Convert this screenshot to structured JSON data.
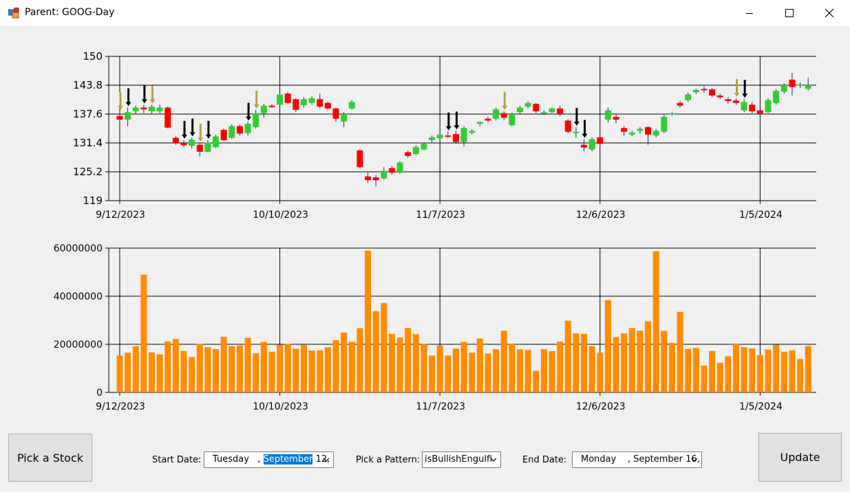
{
  "window": {
    "title": "Parent: GOOG-Day",
    "controls": {
      "minimize": "minimize-icon",
      "maximize": "maximize-icon",
      "close": "close-icon"
    }
  },
  "controls": {
    "pick_stock": "Pick a Stock",
    "update": "Update",
    "start_label": "Start Date:",
    "start_value": {
      "day": "Tuesday",
      "sep": ",",
      "month": "September",
      "rest": "12,"
    },
    "pattern_label": "Pick a Pattern:",
    "pattern_value": "isBullishEngulfi",
    "end_label": "End Date:",
    "end_value": "Monday    , September 16,"
  },
  "colors": {
    "up": "#32cd32",
    "down": "#ff0000",
    "volume": "#ff8c00",
    "marker": "#000000",
    "marker_alt": "#b8a040"
  },
  "chart_data": [
    {
      "type": "candlestick",
      "ylim": [
        119,
        150
      ],
      "y_ticks": [
        "150",
        "143.8",
        "137.6",
        "131.4",
        "125.2",
        "119"
      ],
      "x_tick_labels": [
        "9/12/2023",
        "10/10/2023",
        "11/7/2023",
        "12/6/2023",
        "1/5/2024"
      ],
      "x_tick_index": [
        0,
        20,
        40,
        60,
        80
      ],
      "candles": [
        {
          "o": 137.2,
          "c": 136.4,
          "h": 138.2,
          "l": 136.0
        },
        {
          "o": 136.4,
          "c": 138.0,
          "h": 139.0,
          "l": 135.0
        },
        {
          "o": 138.2,
          "c": 139.0,
          "h": 139.4,
          "l": 137.5
        },
        {
          "o": 139.0,
          "c": 138.6,
          "h": 139.6,
          "l": 137.8
        },
        {
          "o": 138.2,
          "c": 139.2,
          "h": 139.6,
          "l": 137.6
        },
        {
          "o": 138.2,
          "c": 139.0,
          "h": 139.6,
          "l": 137.8
        },
        {
          "o": 139.0,
          "c": 134.7,
          "h": 139.2,
          "l": 134.5
        },
        {
          "o": 132.5,
          "c": 131.4,
          "h": 132.8,
          "l": 131.0
        },
        {
          "o": 131.4,
          "c": 130.9,
          "h": 132.0,
          "l": 130.5
        },
        {
          "o": 130.8,
          "c": 132.1,
          "h": 132.5,
          "l": 130.2
        },
        {
          "o": 131.0,
          "c": 129.5,
          "h": 131.4,
          "l": 128.5
        },
        {
          "o": 129.5,
          "c": 131.5,
          "h": 132.0,
          "l": 129.4
        },
        {
          "o": 130.5,
          "c": 132.8,
          "h": 133.2,
          "l": 130.3
        },
        {
          "o": 134.2,
          "c": 132.0,
          "h": 134.5,
          "l": 131.8
        },
        {
          "o": 132.5,
          "c": 135.0,
          "h": 135.4,
          "l": 132.2
        },
        {
          "o": 135.0,
          "c": 133.4,
          "h": 135.3,
          "l": 133.0
        },
        {
          "o": 133.5,
          "c": 135.5,
          "h": 135.9,
          "l": 133.0
        },
        {
          "o": 134.8,
          "c": 137.8,
          "h": 138.5,
          "l": 134.5
        },
        {
          "o": 137.8,
          "c": 139.4,
          "h": 139.8,
          "l": 136.8
        },
        {
          "o": 139.4,
          "c": 139.1,
          "h": 139.7,
          "l": 138.9
        },
        {
          "o": 139.6,
          "c": 141.8,
          "h": 142.2,
          "l": 139.4
        },
        {
          "o": 142.0,
          "c": 140.0,
          "h": 142.3,
          "l": 139.8
        },
        {
          "o": 140.8,
          "c": 138.5,
          "h": 141.0,
          "l": 138.0
        },
        {
          "o": 139.5,
          "c": 140.8,
          "h": 141.2,
          "l": 139.0
        },
        {
          "o": 140.0,
          "c": 141.0,
          "h": 141.4,
          "l": 139.6
        },
        {
          "o": 140.8,
          "c": 139.2,
          "h": 142.0,
          "l": 138.9
        },
        {
          "o": 140.0,
          "c": 138.8,
          "h": 140.3,
          "l": 138.5
        },
        {
          "o": 138.8,
          "c": 136.6,
          "h": 139.0,
          "l": 136.0
        },
        {
          "o": 136.0,
          "c": 137.6,
          "h": 138.0,
          "l": 134.8
        },
        {
          "o": 138.8,
          "c": 140.2,
          "h": 140.6,
          "l": 138.5
        },
        {
          "o": 129.8,
          "c": 126.2,
          "h": 130.0,
          "l": 126.0
        },
        {
          "o": 124.2,
          "c": 123.4,
          "h": 125.0,
          "l": 122.8
        },
        {
          "o": 124.0,
          "c": 123.4,
          "h": 124.5,
          "l": 122.0
        },
        {
          "o": 123.8,
          "c": 125.4,
          "h": 126.2,
          "l": 123.5
        },
        {
          "o": 126.0,
          "c": 125.0,
          "h": 126.5,
          "l": 124.6
        },
        {
          "o": 125.0,
          "c": 127.2,
          "h": 127.5,
          "l": 124.8
        },
        {
          "o": 129.4,
          "c": 128.6,
          "h": 129.8,
          "l": 128.2
        },
        {
          "o": 129.0,
          "c": 130.5,
          "h": 130.9,
          "l": 128.8
        },
        {
          "o": 130.0,
          "c": 131.2,
          "h": 131.5,
          "l": 129.8
        },
        {
          "o": 132.0,
          "c": 132.6,
          "h": 133.0,
          "l": 131.5
        },
        {
          "o": 132.4,
          "c": 133.2,
          "h": 133.6,
          "l": 132.0
        },
        {
          "o": 133.0,
          "c": 132.8,
          "h": 133.8,
          "l": 132.4
        },
        {
          "o": 133.3,
          "c": 131.6,
          "h": 134.0,
          "l": 131.2
        },
        {
          "o": 131.6,
          "c": 134.6,
          "h": 135.0,
          "l": 130.6
        },
        {
          "o": 133.6,
          "c": 134.0,
          "h": 134.4,
          "l": 133.2
        },
        {
          "o": 135.5,
          "c": 135.9,
          "h": 136.0,
          "l": 135.0
        },
        {
          "o": 136.6,
          "c": 136.2,
          "h": 137.0,
          "l": 135.8
        },
        {
          "o": 136.6,
          "c": 138.6,
          "h": 139.0,
          "l": 136.2
        },
        {
          "o": 137.8,
          "c": 136.8,
          "h": 138.2,
          "l": 136.3
        },
        {
          "o": 135.2,
          "c": 137.6,
          "h": 137.9,
          "l": 135.0
        },
        {
          "o": 138.0,
          "c": 139.0,
          "h": 139.4,
          "l": 137.6
        },
        {
          "o": 139.2,
          "c": 140.0,
          "h": 140.4,
          "l": 138.8
        },
        {
          "o": 139.8,
          "c": 138.2,
          "h": 140.0,
          "l": 137.8
        },
        {
          "o": 137.8,
          "c": 138.0,
          "h": 138.4,
          "l": 137.4
        },
        {
          "o": 138.0,
          "c": 138.8,
          "h": 139.0,
          "l": 137.8
        },
        {
          "o": 138.8,
          "c": 137.6,
          "h": 139.4,
          "l": 137.2
        },
        {
          "o": 136.2,
          "c": 133.8,
          "h": 136.5,
          "l": 133.5
        },
        {
          "o": 133.8,
          "c": 133.8,
          "h": 134.8,
          "l": 132.5
        },
        {
          "o": 131.0,
          "c": 130.4,
          "h": 132.2,
          "l": 129.6
        },
        {
          "o": 130.0,
          "c": 132.2,
          "h": 132.6,
          "l": 129.6
        },
        {
          "o": 132.6,
          "c": 131.2,
          "h": 133.0,
          "l": 131.0
        },
        {
          "o": 136.4,
          "c": 138.4,
          "h": 139.0,
          "l": 135.8
        },
        {
          "o": 137.0,
          "c": 136.4,
          "h": 137.6,
          "l": 135.6
        },
        {
          "o": 134.6,
          "c": 133.8,
          "h": 135.0,
          "l": 133.0
        },
        {
          "o": 133.2,
          "c": 133.6,
          "h": 134.0,
          "l": 132.8
        },
        {
          "o": 134.0,
          "c": 134.4,
          "h": 134.8,
          "l": 133.4
        },
        {
          "o": 134.8,
          "c": 133.2,
          "h": 135.0,
          "l": 131.0
        },
        {
          "o": 133.0,
          "c": 134.0,
          "h": 134.4,
          "l": 132.6
        },
        {
          "o": 133.8,
          "c": 137.0,
          "h": 137.4,
          "l": 133.5
        },
        {
          "o": 137.6,
          "c": 137.8,
          "h": 138.0,
          "l": 137.2
        },
        {
          "o": 140.0,
          "c": 139.4,
          "h": 140.4,
          "l": 139.0
        },
        {
          "o": 140.6,
          "c": 141.8,
          "h": 142.2,
          "l": 140.2
        },
        {
          "o": 142.3,
          "c": 142.8,
          "h": 143.0,
          "l": 141.9
        },
        {
          "o": 143.0,
          "c": 142.8,
          "h": 143.6,
          "l": 142.2
        },
        {
          "o": 142.9,
          "c": 141.6,
          "h": 143.2,
          "l": 141.2
        },
        {
          "o": 141.6,
          "c": 141.2,
          "h": 142.0,
          "l": 140.8
        },
        {
          "o": 140.8,
          "c": 140.4,
          "h": 141.2,
          "l": 139.8
        },
        {
          "o": 140.5,
          "c": 140.0,
          "h": 141.0,
          "l": 139.6
        },
        {
          "o": 138.4,
          "c": 140.2,
          "h": 140.8,
          "l": 138.0
        },
        {
          "o": 139.6,
          "c": 138.2,
          "h": 140.2,
          "l": 137.8
        },
        {
          "o": 138.4,
          "c": 137.6,
          "h": 138.6,
          "l": 137.2
        },
        {
          "o": 138.0,
          "c": 140.6,
          "h": 141.0,
          "l": 137.8
        },
        {
          "o": 140.0,
          "c": 142.6,
          "h": 143.0,
          "l": 139.6
        },
        {
          "o": 142.4,
          "c": 143.8,
          "h": 144.2,
          "l": 142.0
        },
        {
          "o": 145.0,
          "c": 143.4,
          "h": 146.4,
          "l": 141.6
        },
        {
          "o": 143.8,
          "c": 144.0,
          "h": 144.4,
          "l": 143.2
        },
        {
          "o": 143.0,
          "c": 143.8,
          "h": 145.4,
          "l": 142.6
        }
      ],
      "pattern_markers": [
        0,
        1,
        3,
        4,
        8,
        9,
        10,
        11,
        16,
        17,
        41,
        42,
        48,
        57,
        58,
        77,
        78
      ]
    },
    {
      "type": "bar",
      "ylim": [
        0,
        60000000
      ],
      "y_ticks": [
        "60000000",
        "40000000",
        "20000000",
        "0"
      ],
      "x_tick_labels": [
        "9/12/2023",
        "10/10/2023",
        "11/7/2023",
        "12/6/2023",
        "1/5/2024"
      ],
      "x_tick_index": [
        0,
        20,
        40,
        60,
        80
      ],
      "values": [
        15300000,
        16500000,
        19200000,
        49000000,
        16600000,
        15800000,
        21200000,
        22200000,
        17200000,
        14700000,
        20200000,
        18800000,
        18000000,
        23100000,
        19200000,
        19500000,
        22700000,
        16300000,
        21000000,
        16900000,
        19800000,
        20200000,
        18200000,
        19700000,
        17400000,
        17500000,
        18800000,
        21700000,
        24900000,
        21000000,
        26700000,
        59000000,
        33800000,
        37200000,
        24300000,
        22800000,
        26800000,
        24200000,
        20100000,
        15300000,
        19500000,
        15300000,
        18200000,
        21000000,
        16500000,
        22400000,
        16200000,
        17900000,
        25700000,
        20300000,
        17900000,
        17600000,
        9000000,
        17900000,
        17100000,
        21100000,
        29800000,
        24500000,
        24300000,
        19200000,
        16500000,
        38400000,
        23000000,
        24500000,
        26800000,
        25700000,
        29600000,
        58700000,
        25600000,
        20600000,
        33500000,
        18100000,
        18500000,
        11100000,
        17300000,
        12300000,
        15000000,
        20300000,
        18800000,
        18300000,
        15500000,
        17800000,
        19800000,
        16800000,
        17500000,
        13900000,
        19300000
      ]
    }
  ]
}
